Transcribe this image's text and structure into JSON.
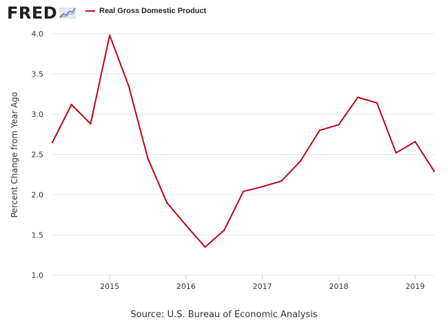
{
  "brand": {
    "logo_text": "FRED",
    "logo_icon": "chart-line-icon"
  },
  "source": "Source: U.S. Bureau of Economic Analysis",
  "colors": {
    "series": "#c00012",
    "grid": "#e6e6e6",
    "axis_text": "#333333"
  },
  "chart_data": {
    "type": "line",
    "title": "",
    "ylabel": "Percent Change from Year Ago",
    "xlabel": "",
    "ylim": [
      1.0,
      4.0
    ],
    "yticks": [
      1.0,
      1.5,
      2.0,
      2.5,
      3.0,
      3.5,
      4.0
    ],
    "ytick_labels": [
      "1.0",
      "1.5",
      "2.0",
      "2.5",
      "3.0",
      "3.5",
      "4.0"
    ],
    "xlim": [
      2014.25,
      2019.25
    ],
    "xticks": [
      2015,
      2016,
      2017,
      2018,
      2019
    ],
    "xtick_labels": [
      "2015",
      "2016",
      "2017",
      "2018",
      "2019"
    ],
    "grid": "horizontal",
    "legend": "top-left",
    "series": [
      {
        "name": "Real Gross Domestic Product",
        "x": [
          "2014-04-01",
          "2014-07-01",
          "2014-10-01",
          "2015-01-01",
          "2015-04-01",
          "2015-07-01",
          "2015-10-01",
          "2016-01-01",
          "2016-04-01",
          "2016-07-01",
          "2016-10-01",
          "2017-01-01",
          "2017-04-01",
          "2017-07-01",
          "2017-10-01",
          "2018-01-01",
          "2018-04-01",
          "2018-07-01",
          "2018-10-01",
          "2019-01-01",
          "2019-04-01"
        ],
        "values": [
          2.65,
          3.12,
          2.88,
          3.98,
          3.35,
          2.45,
          1.9,
          1.62,
          1.35,
          1.56,
          2.04,
          2.1,
          2.17,
          2.42,
          2.8,
          2.87,
          3.21,
          3.14,
          2.52,
          2.66,
          2.29
        ]
      }
    ]
  }
}
